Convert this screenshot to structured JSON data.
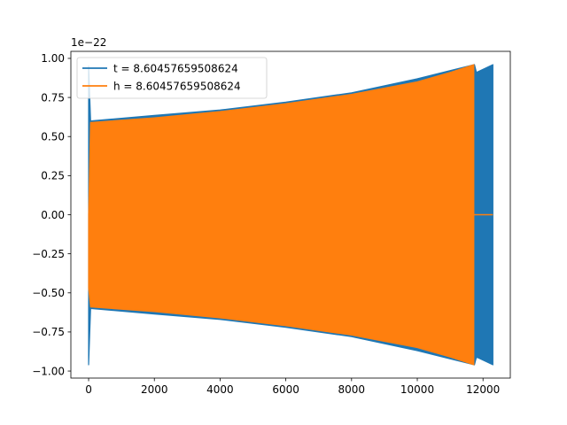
{
  "chart_data": {
    "type": "line",
    "title": "",
    "xlabel": "",
    "ylabel": "",
    "offset_text": "1e−22",
    "xlim": [
      -540,
      12830
    ],
    "ylim": [
      -1.045,
      1.045
    ],
    "x_ticks": [
      0,
      2000,
      4000,
      6000,
      8000,
      10000,
      12000
    ],
    "x_tick_labels": [
      "0",
      "2000",
      "4000",
      "6000",
      "8000",
      "10000",
      "12000"
    ],
    "y_ticks": [
      1.0,
      0.75,
      0.5,
      0.25,
      0.0,
      -0.25,
      -0.5,
      -0.75,
      -1.0
    ],
    "y_tick_labels": [
      "1.00",
      "0.75",
      "0.50",
      "0.25",
      "0.00",
      "−0.25",
      "−0.50",
      "−0.75",
      "−1.00"
    ],
    "grid": false,
    "legend_position": "upper-left",
    "series": [
      {
        "name": "t = 8.60457659508624",
        "color": "#1f77b4",
        "envelope": {
          "x": [
            0,
            60,
            2000,
            4000,
            6000,
            8000,
            10000,
            11740,
            11800,
            12300
          ],
          "upper": [
            0.95,
            0.6,
            0.635,
            0.67,
            0.72,
            0.78,
            0.87,
            0.96,
            0.91,
            0.96
          ],
          "lower": [
            -0.96,
            -0.6,
            -0.635,
            -0.67,
            -0.72,
            -0.78,
            -0.87,
            -0.96,
            -0.91,
            -0.96
          ]
        },
        "flat_tail": []
      },
      {
        "name": "h = 8.60457659508624",
        "color": "#ff7f0e",
        "envelope": {
          "x": [
            0,
            60,
            2000,
            4000,
            6000,
            8000,
            10000,
            11000,
            11720
          ],
          "upper": [
            0.0,
            0.59,
            0.62,
            0.66,
            0.71,
            0.77,
            0.85,
            0.91,
            0.96
          ],
          "lower": [
            -0.47,
            -0.59,
            -0.62,
            -0.66,
            -0.71,
            -0.77,
            -0.85,
            -0.91,
            -0.96
          ]
        },
        "flat_tail": [
          11720,
          12300
        ]
      }
    ]
  }
}
